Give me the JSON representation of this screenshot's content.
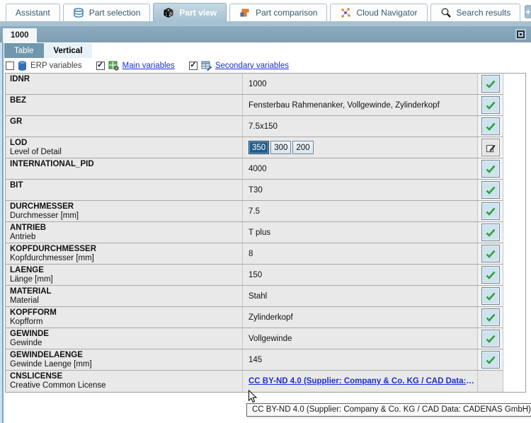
{
  "app_tabs": [
    {
      "label": "Assistant",
      "icon": "none",
      "active": false
    },
    {
      "label": "Part selection",
      "icon": "layers-icon",
      "active": false
    },
    {
      "label": "Part view",
      "icon": "die-icon",
      "active": true
    },
    {
      "label": "Part comparison",
      "icon": "compare-icon",
      "active": false
    },
    {
      "label": "Cloud Navigator",
      "icon": "network-icon",
      "active": false
    },
    {
      "label": "Search results",
      "icon": "search-icon",
      "active": false
    }
  ],
  "new_tab_button": "+",
  "document_tab": "1000",
  "view_tabs": [
    {
      "label": "Table",
      "active": false
    },
    {
      "label": "Vertical",
      "active": true
    }
  ],
  "filters": [
    {
      "label": "ERP variables",
      "checked": false,
      "icon": "database-icon",
      "link": false
    },
    {
      "label": "Main variables",
      "checked": true,
      "icon": "main-variables-icon",
      "link": true
    },
    {
      "label": "Secondary variables",
      "checked": true,
      "icon": "secondary-variables-icon",
      "link": true
    }
  ],
  "lod": {
    "options": [
      "350",
      "300",
      "200"
    ],
    "selected": "350"
  },
  "table": {
    "rows": [
      {
        "name": "IDNR",
        "description": "",
        "value": "1000",
        "type": "text",
        "action": "check"
      },
      {
        "name": "BEZ",
        "description": "",
        "value": "Fensterbau Rahmenanker, Vollgewinde, Zylinderkopf",
        "type": "text",
        "action": "check"
      },
      {
        "name": "GR",
        "description": "",
        "value": "7.5x150",
        "type": "text",
        "action": "check"
      },
      {
        "name": "LOD",
        "description": "Level of Detail",
        "value": "350",
        "type": "lod",
        "action": "edit"
      },
      {
        "name": "INTERNATIONAL_PID",
        "description": "",
        "value": "4000",
        "type": "text",
        "action": "check"
      },
      {
        "name": "BIT",
        "description": "",
        "value": "T30",
        "type": "text",
        "action": "check"
      },
      {
        "name": "DURCHMESSER",
        "description": "Durchmesser [mm]",
        "value": "7.5",
        "type": "text",
        "action": "check"
      },
      {
        "name": "ANTRIEB",
        "description": "Antrieb",
        "value": "T plus",
        "type": "text",
        "action": "check"
      },
      {
        "name": "KOPFDURCHMESSER",
        "description": "Kopfdurchmesser [mm]",
        "value": "8",
        "type": "text",
        "action": "check"
      },
      {
        "name": "LAENGE",
        "description": "Länge [mm]",
        "value": "150",
        "type": "text",
        "action": "check"
      },
      {
        "name": "MATERIAL",
        "description": "Material",
        "value": "Stahl",
        "type": "text",
        "action": "check"
      },
      {
        "name": "KOPFFORM",
        "description": "Kopfform",
        "value": "Zylinderkopf",
        "type": "text",
        "action": "check"
      },
      {
        "name": "GEWINDE",
        "description": "Gewinde",
        "value": "Vollgewinde",
        "type": "text",
        "action": "check"
      },
      {
        "name": "GEWINDELAENGE",
        "description": "Gewinde Laenge [mm]",
        "value": "145",
        "type": "text",
        "action": "check"
      },
      {
        "name": "CNSLICENSE",
        "description": "Creative Common License",
        "value": "CC BY-ND 4.0 (Supplier: Company & Co. KG / CAD Data: CADENAS GmbH..",
        "type": "link",
        "action": "none"
      }
    ]
  },
  "tooltip": "CC BY-ND 4.0 (Supplier: Company & Co. KG / CAD Data: CADENAS GmbH)",
  "colors": {
    "accent_blue": "#1f5c8c",
    "check_green": "#2ca33a",
    "link_blue": "#1b2fd0",
    "tab_strip": "#a6c2d2",
    "doc_bar": "#84a3b8"
  }
}
